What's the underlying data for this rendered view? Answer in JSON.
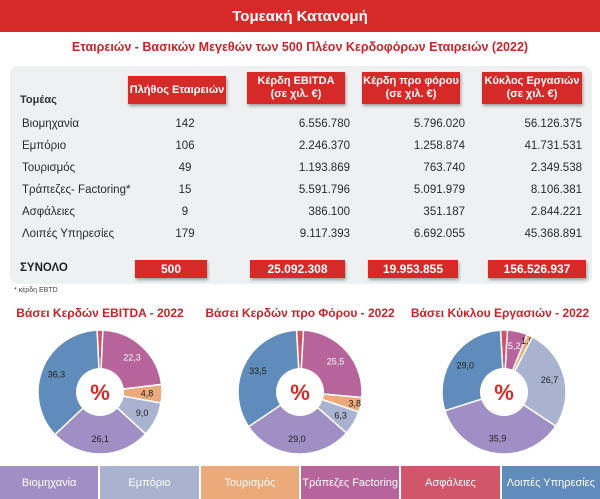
{
  "header": {
    "title": "Τομεακή Κατανομή",
    "subtitle": "Εταιρειών - Βασικών Μεγεθών των 500 Πλέον Κερδοφόρων Εταιρειών (2022)"
  },
  "table": {
    "sector_header": "Τομέας",
    "col_count": "Πλήθος Εταιρειών",
    "col_ebitda_1": "Κέρδη EBITDA",
    "col_ebitda_2": "(σε χιλ. €)",
    "col_pbt_1": "Κέρδη προ φόρου",
    "col_pbt_2": "(σε χιλ. €)",
    "col_rev_1": "Κύκλος Εργασιών",
    "col_rev_2": "(σε χιλ. €)",
    "rows": [
      {
        "sector": "Βιομηχανία",
        "count": "142",
        "ebitda": "6.556.780",
        "pbt": "5.796.020",
        "rev": "56.126.375"
      },
      {
        "sector": "Εμπόριο",
        "count": "106",
        "ebitda": "2.246.370",
        "pbt": "1.258.874",
        "rev": "41.731.531"
      },
      {
        "sector": "Τουρισμός",
        "count": "49",
        "ebitda": "1.193.869",
        "pbt": "763.740",
        "rev": "2.349.538"
      },
      {
        "sector": "Τράπεζες- Factoring*",
        "count": "15",
        "ebitda": "5.591.796",
        "pbt": "5.091.979",
        "rev": "8.106.381"
      },
      {
        "sector": "Ασφάλειες",
        "count": "9",
        "ebitda": "386.100",
        "pbt": "351.187",
        "rev": "2.844.221"
      },
      {
        "sector": "Λοιπές Υπηρεσίες",
        "count": "179",
        "ebitda": "9.117.393",
        "pbt": "6.692.055",
        "rev": "45.368.891"
      }
    ],
    "total": {
      "label": "ΣΥΝΟΛΟ",
      "count": "500",
      "ebitda": "25.092.308",
      "pbt": "19.953.855",
      "rev": "156.526.937"
    },
    "footnote": "* κέρδη EBTD"
  },
  "colors": {
    "accent": "#d62a28",
    "industry": "#9f8fc4",
    "commerce": "#a9b3cf",
    "tourism": "#eca97a",
    "banks": "#b7649b",
    "insurance": "#d2566a",
    "other": "#5f8cba"
  },
  "legend": [
    {
      "label": "Βιομηχανία",
      "color": "#9f8fc4"
    },
    {
      "label": "Εμπόριο",
      "color": "#a9b3cf"
    },
    {
      "label": "Τουρισμός",
      "color": "#eca97a"
    },
    {
      "label": "Τράπεζες Factoring",
      "color": "#b7649b"
    },
    {
      "label": "Ασφάλειες",
      "color": "#d2566a"
    },
    {
      "label": "Λοιπές Υπηρεσίες",
      "color": "#5f8cba"
    }
  ],
  "chart_data": [
    {
      "type": "pie",
      "title": "Βάσει Κερδών EBITDA - 2022",
      "center_label": "%",
      "categories": [
        "Βιομηχανία",
        "Εμπόριο",
        "Τουρισμός",
        "Τράπεζες Factoring",
        "Ασφάλειες",
        "Λοιπές Υπηρεσίες"
      ],
      "values": [
        26.1,
        9.0,
        4.8,
        22.3,
        1.5,
        36.3
      ],
      "labels": [
        "26,1",
        "9,0",
        "4,8",
        "22,3",
        "1,5",
        "36,3"
      ]
    },
    {
      "type": "pie",
      "title": "Βάσει Κερδών προ Φόρου - 2022",
      "center_label": "%",
      "categories": [
        "Βιομηχανία",
        "Εμπόριο",
        "Τουρισμός",
        "Τράπεζες Factoring",
        "Ασφάλειες",
        "Λοιπές Υπηρεσίες"
      ],
      "values": [
        29.0,
        6.3,
        3.8,
        25.5,
        1.8,
        33.5
      ],
      "labels": [
        "29,0",
        "6,3",
        "3,8",
        "25,5",
        "1,8",
        "33,5"
      ]
    },
    {
      "type": "pie",
      "title": "Βάσει Κύκλου Εργασιών - 2022",
      "center_label": "%",
      "categories": [
        "Βιομηχανία",
        "Εμπόριο",
        "Τουρισμός",
        "Τράπεζες Factoring",
        "Ασφάλειες",
        "Λοιπές Υπηρεσίες"
      ],
      "values": [
        35.9,
        26.7,
        1.5,
        5.2,
        1.8,
        29.0
      ],
      "labels": [
        "35,9",
        "26,7",
        "1,5",
        "5,2",
        "1,8",
        "29,0"
      ]
    }
  ]
}
